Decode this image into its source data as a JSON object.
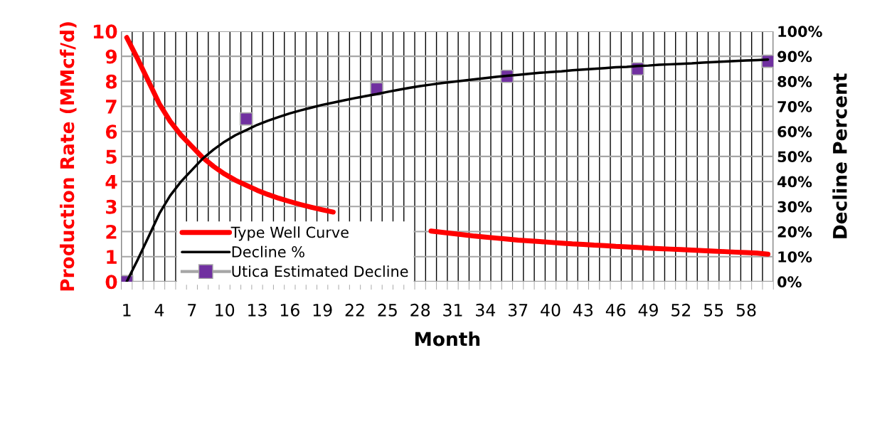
{
  "chart_data": {
    "type": "line",
    "xlabel": "Month",
    "ylabel": "Production Rate (MMcf/d)",
    "y2label": "Decline Percent",
    "categories": [
      "1",
      null,
      null,
      "4",
      null,
      null,
      "7",
      null,
      null,
      "10",
      null,
      null,
      "13",
      null,
      null,
      "16",
      null,
      null,
      "19",
      null,
      null,
      "22",
      null,
      null,
      "25",
      null,
      null,
      "28",
      null,
      null,
      "31",
      null,
      null,
      "34",
      null,
      null,
      "37",
      null,
      null,
      "40",
      null,
      null,
      "43",
      null,
      null,
      "46",
      null,
      null,
      "49",
      null,
      null,
      "52",
      null,
      null,
      "55",
      null,
      null,
      "58",
      null,
      null
    ],
    "ylim": [
      0,
      10
    ],
    "yticks": [
      0,
      1,
      2,
      3,
      4,
      5,
      6,
      7,
      8,
      9,
      10
    ],
    "y2lim": [
      0,
      100
    ],
    "y2ticks": [
      {
        "value": 0,
        "label": "0%"
      },
      {
        "value": 10,
        "label": "10%"
      },
      {
        "value": 20,
        "label": "20%"
      },
      {
        "value": 30,
        "label": "30%"
      },
      {
        "value": 40,
        "label": "40%"
      },
      {
        "value": 50,
        "label": "50%"
      },
      {
        "value": 60,
        "label": "60%"
      },
      {
        "value": 70,
        "label": "70%"
      },
      {
        "value": 80,
        "label": "80%"
      },
      {
        "value": 90,
        "label": "90%"
      },
      {
        "value": 100,
        "label": "100%"
      }
    ],
    "grid": true,
    "legend": "bottom left",
    "series": [
      {
        "name": "Type Well Curve",
        "color": "#ff0000",
        "values": [
          9.75,
          8.9,
          8.0,
          7.1,
          6.4,
          5.85,
          5.4,
          4.95,
          4.6,
          4.3,
          4.05,
          3.85,
          3.65,
          3.48,
          3.33,
          3.2,
          3.08,
          2.97,
          2.87,
          2.78,
          null,
          null,
          null,
          null,
          null,
          null,
          null,
          null,
          2.02,
          1.97,
          1.92,
          1.87,
          1.82,
          1.78,
          1.74,
          1.7,
          1.66,
          1.63,
          1.6,
          1.57,
          1.54,
          1.51,
          1.49,
          1.46,
          1.44,
          1.41,
          1.39,
          1.37,
          1.34,
          1.32,
          1.3,
          1.28,
          1.26,
          1.24,
          1.22,
          1.2,
          1.18,
          1.16,
          1.14,
          1.1
        ]
      },
      {
        "name": "Decline %",
        "color": "#000000",
        "axis": "y2",
        "values": [
          0,
          8.7,
          17.9,
          27.2,
          34.4,
          40,
          44.6,
          49.2,
          52.8,
          55.9,
          58.5,
          60.5,
          62.6,
          64.3,
          65.8,
          67.2,
          68.4,
          69.5,
          70.6,
          71.5,
          72.4,
          73.3,
          74.1,
          74.9,
          75.8,
          76.6,
          77.4,
          78.1,
          78.7,
          79.3,
          79.8,
          80.3,
          80.8,
          81.3,
          81.8,
          82.2,
          82.6,
          83,
          83.4,
          83.7,
          84,
          84.4,
          84.7,
          85,
          85.3,
          85.6,
          85.8,
          86.1,
          86.3,
          86.6,
          86.8,
          87,
          87.2,
          87.5,
          87.7,
          87.9,
          88.1,
          88.3,
          88.5,
          88.7
        ]
      },
      {
        "name": "Utica Estimated Decline",
        "type": "scatter",
        "marker": "square",
        "color": "#7030a0",
        "axis": "y2",
        "values": [
          0,
          null,
          null,
          null,
          null,
          null,
          null,
          null,
          null,
          null,
          null,
          65,
          null,
          null,
          null,
          null,
          null,
          null,
          null,
          null,
          null,
          null,
          null,
          77,
          null,
          null,
          null,
          null,
          null,
          null,
          null,
          null,
          null,
          null,
          null,
          82,
          null,
          null,
          null,
          null,
          null,
          null,
          null,
          null,
          null,
          null,
          null,
          85,
          null,
          null,
          null,
          null,
          null,
          null,
          null,
          null,
          null,
          null,
          null,
          88
        ]
      }
    ]
  }
}
